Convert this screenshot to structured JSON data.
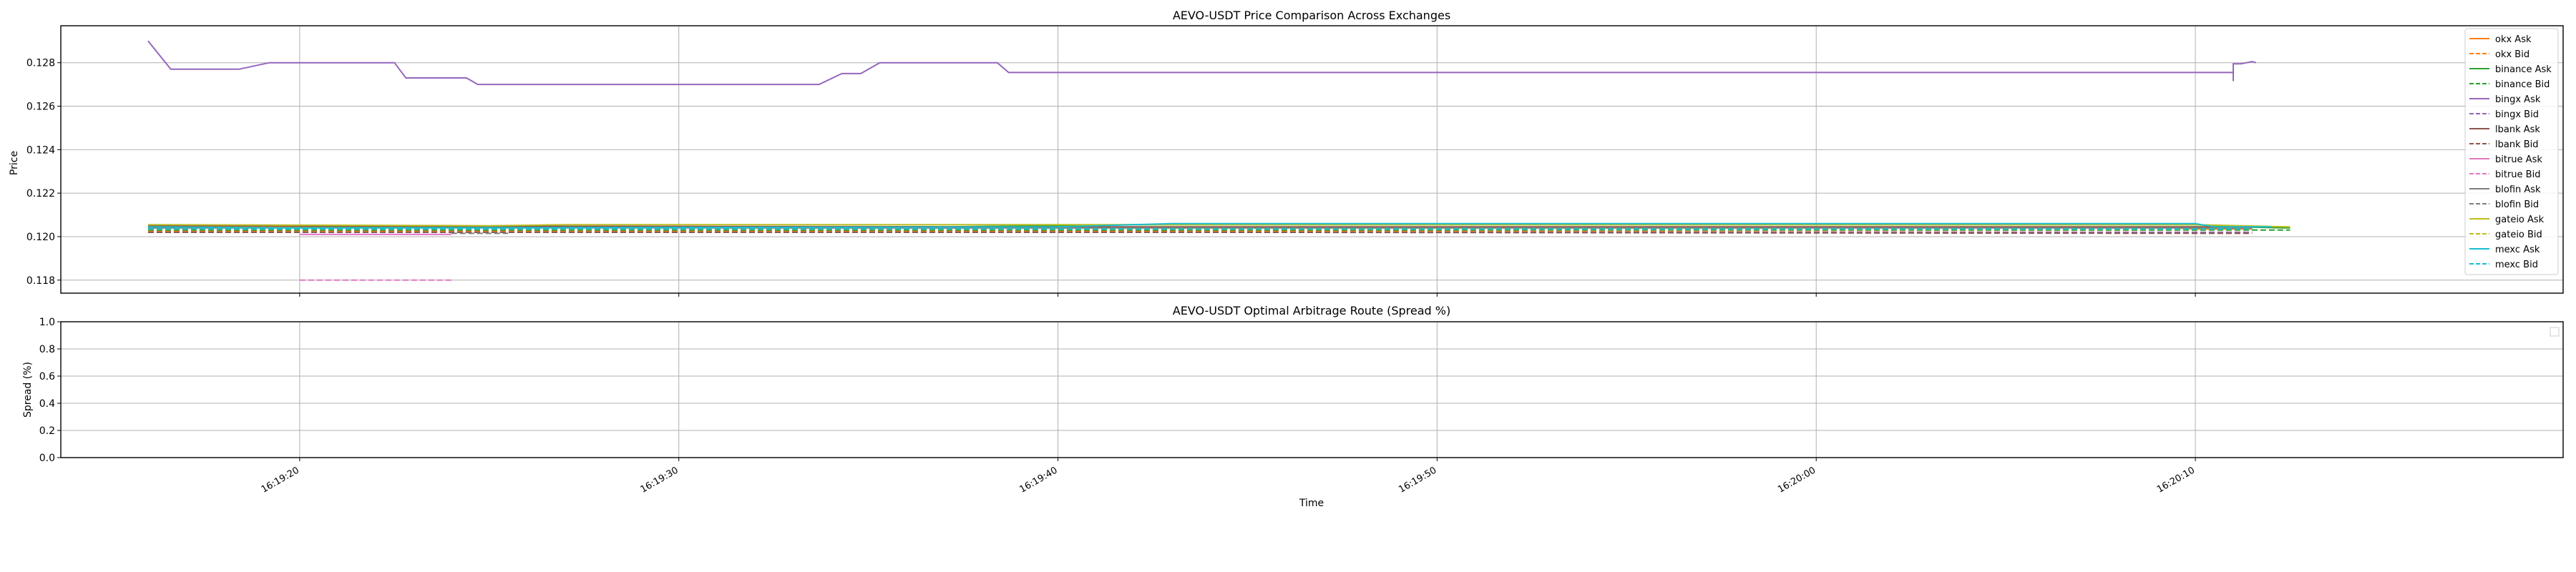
{
  "chart_data": [
    {
      "type": "line",
      "title": "AEVO-USDT Price Comparison Across Exchanges",
      "xlabel": "",
      "ylabel": "Price",
      "ylim": [
        0.1174,
        0.1297
      ],
      "xlim": [
        "16:19:13.7",
        "16:20:19.7"
      ],
      "yticks": [
        "0.118",
        "0.120",
        "0.122",
        "0.124",
        "0.126",
        "0.128"
      ],
      "grid": true,
      "legend": "upper right",
      "series": [
        {
          "name": "okx Ask",
          "color": "#ff7f0e",
          "dash": false,
          "points": [
            [
              "16:19:16.0",
              0.12045
            ],
            [
              "16:19:33.0",
              0.1204
            ],
            [
              "16:19:40.0",
              0.1204
            ],
            [
              "16:20:09.5",
              0.1204
            ],
            [
              "16:20:10.0",
              0.12035
            ],
            [
              "16:20:11.5",
              0.12035
            ]
          ]
        },
        {
          "name": "okx Bid",
          "color": "#ff7f0e",
          "dash": true,
          "points": [
            [
              "16:19:16.0",
              0.12025
            ],
            [
              "16:19:44.0",
              0.12025
            ],
            [
              "16:20:10.0",
              0.1202
            ],
            [
              "16:20:11.5",
              0.1202
            ]
          ]
        },
        {
          "name": "binance Ask",
          "color": "#2ca02c",
          "dash": false,
          "points": [
            [
              "16:19:16.0",
              0.1204
            ],
            [
              "16:19:33.0",
              0.12045
            ],
            [
              "16:19:37.0",
              0.12045
            ],
            [
              "16:19:42.0",
              0.12055
            ],
            [
              "16:20:10.0",
              0.12055
            ],
            [
              "16:20:11.0",
              0.12045
            ],
            [
              "16:20:12.5",
              0.1204
            ]
          ]
        },
        {
          "name": "binance Bid",
          "color": "#2ca02c",
          "dash": true,
          "points": [
            [
              "16:19:16.0",
              0.1203
            ],
            [
              "16:19:44.0",
              0.1203
            ],
            [
              "16:20:12.5",
              0.1203
            ]
          ]
        },
        {
          "name": "bingx Ask",
          "color": "#9467bd",
          "dash": false,
          "points": [
            [
              "16:19:16.0",
              0.129
            ],
            [
              "16:19:16.6",
              0.1277
            ],
            [
              "16:19:18.4",
              0.1277
            ],
            [
              "16:19:19.2",
              0.128
            ],
            [
              "16:19:22.5",
              0.128
            ],
            [
              "16:19:22.8",
              0.1273
            ],
            [
              "16:19:24.4",
              0.1273
            ],
            [
              "16:19:24.7",
              0.127
            ],
            [
              "16:19:33.7",
              0.127
            ],
            [
              "16:19:34.3",
              0.1275
            ],
            [
              "16:19:34.8",
              0.1275
            ],
            [
              "16:19:35.3",
              0.128
            ],
            [
              "16:19:38.4",
              0.128
            ],
            [
              "16:19:38.7",
              0.12755
            ],
            [
              "16:20:11.0",
              0.12755
            ],
            [
              "16:20:11.0",
              0.12715
            ],
            [
              "16:20:11.0",
              0.12795
            ],
            [
              "16:20:11.2",
              0.12795
            ],
            [
              "16:20:11.5",
              0.12805
            ],
            [
              "16:20:11.6",
              0.128
            ]
          ]
        },
        {
          "name": "bingx Bid",
          "color": "#9467bd",
          "dash": true,
          "points": [
            [
              "16:19:16.0",
              0.1202
            ],
            [
              "16:19:44.0",
              0.1202
            ],
            [
              "16:20:11.5",
              0.1202
            ]
          ]
        },
        {
          "name": "lbank Ask",
          "color": "#8c564b",
          "dash": false,
          "points": [
            [
              "16:19:16.0",
              0.1205
            ],
            [
              "16:19:40.0",
              0.12045
            ],
            [
              "16:20:11.5",
              0.12045
            ]
          ]
        },
        {
          "name": "lbank Bid",
          "color": "#8c564b",
          "dash": true,
          "points": [
            [
              "16:19:16.0",
              0.1202
            ],
            [
              "16:19:24.5",
              0.1202
            ],
            [
              "16:19:44.0",
              0.1202
            ],
            [
              "16:20:11.5",
              0.12015
            ]
          ]
        },
        {
          "name": "bitrue Ask",
          "color": "#e377c2",
          "dash": false,
          "points": [
            [
              "16:19:20.0",
              0.1201
            ],
            [
              "16:19:24.0",
              0.1201
            ]
          ]
        },
        {
          "name": "bitrue Bid",
          "color": "#e377c2",
          "dash": true,
          "points": [
            [
              "16:19:20.0",
              0.118
            ],
            [
              "16:19:24.0",
              0.118
            ]
          ]
        },
        {
          "name": "blofin Ask",
          "color": "#7f7f7f",
          "dash": false,
          "points": [
            [
              "16:19:16.0",
              0.1204
            ],
            [
              "16:19:44.0",
              0.1204
            ],
            [
              "16:20:11.5",
              0.1204
            ]
          ]
        },
        {
          "name": "blofin Bid",
          "color": "#7f7f7f",
          "dash": true,
          "points": [
            [
              "16:19:24.0",
              0.12015
            ],
            [
              "16:19:25.5",
              0.12015
            ]
          ]
        },
        {
          "name": "gateio Ask",
          "color": "#bcbd22",
          "dash": false,
          "points": [
            [
              "16:19:16.0",
              0.12055
            ],
            [
              "16:19:25.0",
              0.1205
            ],
            [
              "16:19:27.0",
              0.12055
            ],
            [
              "16:19:30.0",
              0.12055
            ],
            [
              "16:19:43.0",
              0.12055
            ],
            [
              "16:20:10.0",
              0.12055
            ],
            [
              "16:20:12.5",
              0.12045
            ]
          ]
        },
        {
          "name": "gateio Bid",
          "color": "#bcbd22",
          "dash": true,
          "points": [
            [
              "16:19:16.0",
              0.12035
            ],
            [
              "16:19:44.0",
              0.12035
            ],
            [
              "16:20:11.5",
              0.12035
            ]
          ]
        },
        {
          "name": "mexc Ask",
          "color": "#17becf",
          "dash": false,
          "points": [
            [
              "16:19:16.0",
              0.12045
            ],
            [
              "16:19:20.0",
              0.1204
            ],
            [
              "16:19:40.0",
              0.12045
            ],
            [
              "16:19:43.0",
              0.1206
            ],
            [
              "16:20:10.0",
              0.1206
            ],
            [
              "16:20:10.5",
              0.12045
            ],
            [
              "16:20:12.0",
              0.12045
            ]
          ]
        },
        {
          "name": "mexc Bid",
          "color": "#17becf",
          "dash": true,
          "points": [
            [
              "16:19:16.0",
              0.12035
            ],
            [
              "16:19:44.0",
              0.12035
            ],
            [
              "16:20:11.5",
              0.12035
            ]
          ]
        }
      ]
    },
    {
      "type": "line",
      "title": "AEVO-USDT Optimal Arbitrage Route (Spread %)",
      "xlabel": "Time",
      "ylabel": "Spread (%)",
      "ylim": [
        0.0,
        1.0
      ],
      "yticks": [
        "0.0",
        "0.2",
        "0.4",
        "0.6",
        "0.8",
        "1.0"
      ],
      "xlim": [
        "16:19:13.7",
        "16:20:19.7"
      ],
      "xticks": [
        "16:19:20",
        "16:19:30",
        "16:19:40",
        "16:19:50",
        "16:20:00",
        "16:20:10"
      ],
      "grid": true,
      "legend": "upper right",
      "series": []
    }
  ]
}
